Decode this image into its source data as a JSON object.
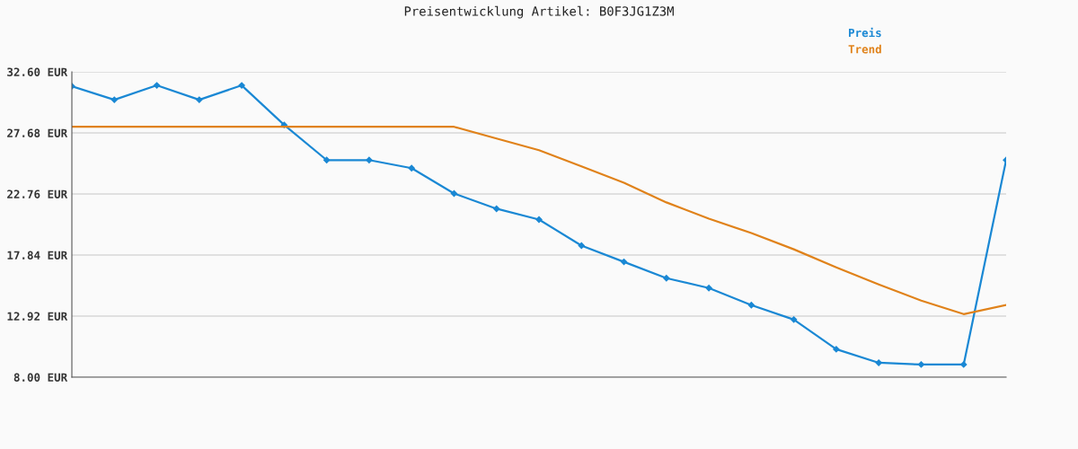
{
  "chart_data": {
    "type": "line",
    "title": "Preisentwicklung Artikel: B0F3JG1Z3M",
    "categories": [
      null,
      null,
      null,
      null,
      null,
      null,
      null,
      null,
      null,
      null,
      null,
      null,
      null,
      null,
      null,
      null,
      null,
      null,
      null,
      null,
      null,
      null,
      null
    ],
    "series": [
      {
        "name": "Preis",
        "color": "#1a88d4",
        "marker": "diamond",
        "values": [
          31.44,
          30.35,
          31.51,
          30.35,
          31.51,
          28.32,
          25.49,
          25.49,
          24.84,
          22.8,
          21.57,
          20.7,
          18.6,
          17.29,
          15.98,
          15.18,
          13.81,
          12.64,
          10.25,
          9.16,
          9.02,
          9.02,
          25.49
        ]
      },
      {
        "name": "Trend",
        "color": "#e0821a",
        "marker": "none",
        "values": [
          28.17,
          28.17,
          28.17,
          28.17,
          28.17,
          28.17,
          28.17,
          28.17,
          28.17,
          28.17,
          27.23,
          26.29,
          24.98,
          23.67,
          22.08,
          20.77,
          19.61,
          18.3,
          16.85,
          15.47,
          14.17,
          13.08,
          13.81
        ]
      }
    ],
    "ylim": [
      8.0,
      32.6
    ],
    "yticks": [
      {
        "value": 8.0,
        "label": "8.00 EUR"
      },
      {
        "value": 12.92,
        "label": "12.92 EUR"
      },
      {
        "value": 17.84,
        "label": "17.84 EUR"
      },
      {
        "value": 22.76,
        "label": "22.76 EUR"
      },
      {
        "value": 27.68,
        "label": "27.68 EUR"
      },
      {
        "value": 32.6,
        "label": "32.60 EUR"
      }
    ],
    "grid": "y",
    "legend": "top right",
    "line_style": "solid"
  }
}
